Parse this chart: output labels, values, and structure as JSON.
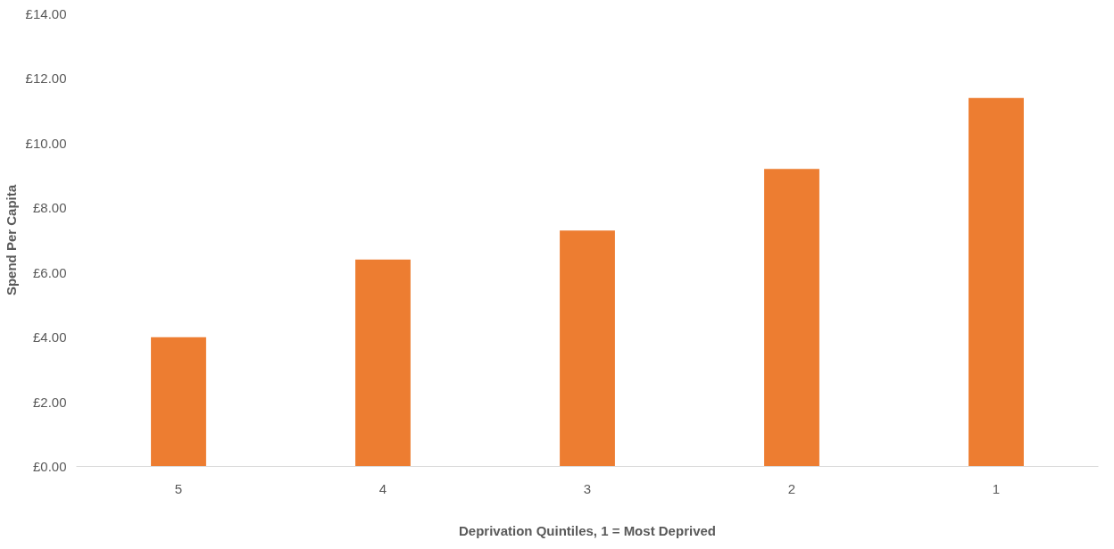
{
  "chart_data": {
    "type": "bar",
    "xlabel": "Deprivation Quintiles, 1 = Most Deprived",
    "ylabel": "Spend Per Capita",
    "categories": [
      "5",
      "4",
      "3",
      "2",
      "1"
    ],
    "values": [
      4.0,
      6.4,
      7.3,
      9.2,
      11.4
    ],
    "color": "#ed7d31",
    "ylim": [
      0,
      14
    ],
    "yticks": [
      {
        "value": 0,
        "label": "£0.00"
      },
      {
        "value": 2,
        "label": "£2.00"
      },
      {
        "value": 4,
        "label": "£4.00"
      },
      {
        "value": 6,
        "label": "£6.00"
      },
      {
        "value": 8,
        "label": "£8.00"
      },
      {
        "value": 10,
        "label": "£10.00"
      },
      {
        "value": 12,
        "label": "£12.00"
      },
      {
        "value": 14,
        "label": "£14.00"
      }
    ],
    "grid": false
  }
}
